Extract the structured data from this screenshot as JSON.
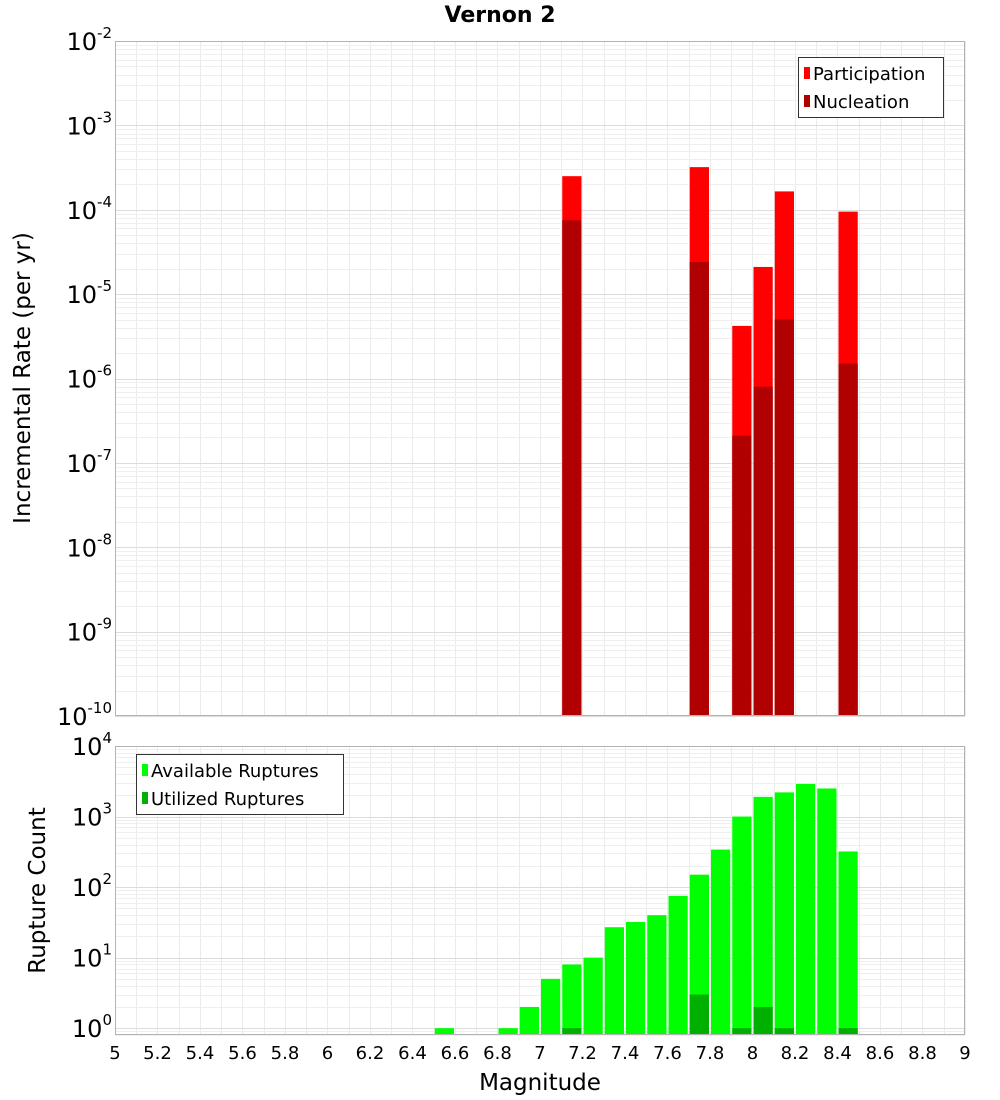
{
  "chart_data": [
    {
      "type": "bar",
      "title": "Vernon 2",
      "xlabel": "Magnitude",
      "ylabel": "Incremental Rate (per yr)",
      "yscale": "log",
      "ylim": [
        1e-10,
        0.01
      ],
      "xlim": [
        5,
        9
      ],
      "y_tick_exponents": [
        "-2",
        "-3",
        "-4",
        "-5",
        "-6",
        "-7",
        "-8",
        "-9",
        "-10"
      ],
      "y_tick_base": "10",
      "bin_width": 0.1,
      "legend_position": "top-right",
      "series": [
        {
          "name": "Participation",
          "color": "#ff0000",
          "points": [
            {
              "x": 7.15,
              "y": 0.00025
            },
            {
              "x": 7.75,
              "y": 0.00032
            },
            {
              "x": 7.95,
              "y": 4.2e-06
            },
            {
              "x": 8.05,
              "y": 2.1e-05
            },
            {
              "x": 8.15,
              "y": 0.000165
            },
            {
              "x": 8.45,
              "y": 9.5e-05
            }
          ]
        },
        {
          "name": "Nucleation",
          "color": "#b00000",
          "points": [
            {
              "x": 7.15,
              "y": 7.5e-05
            },
            {
              "x": 7.75,
              "y": 2.4e-05
            },
            {
              "x": 7.95,
              "y": 2.1e-07
            },
            {
              "x": 8.05,
              "y": 8e-07
            },
            {
              "x": 8.15,
              "y": 5e-06
            },
            {
              "x": 8.45,
              "y": 1.5e-06
            }
          ]
        }
      ]
    },
    {
      "type": "bar",
      "title": "",
      "xlabel": "Magnitude",
      "ylabel": "Rupture Count",
      "yscale": "log",
      "ylim": [
        0.8,
        10000.0
      ],
      "xlim": [
        5,
        9
      ],
      "x_ticks": [
        "5",
        "5.2",
        "5.4",
        "5.6",
        "5.8",
        "6",
        "6.2",
        "6.4",
        "6.6",
        "6.8",
        "7",
        "7.2",
        "7.4",
        "7.6",
        "7.8",
        "8",
        "8.2",
        "8.4",
        "8.6",
        "8.8",
        "9"
      ],
      "y_tick_exponents": [
        "4",
        "3",
        "2",
        "1",
        "0"
      ],
      "y_tick_base": "10",
      "bin_width": 0.1,
      "legend_position": "top-left",
      "series": [
        {
          "name": "Available Ruptures",
          "color": "#00ff00",
          "points": [
            {
              "x": 6.55,
              "y": 1
            },
            {
              "x": 6.85,
              "y": 1
            },
            {
              "x": 6.95,
              "y": 2
            },
            {
              "x": 7.05,
              "y": 5
            },
            {
              "x": 7.15,
              "y": 8
            },
            {
              "x": 7.25,
              "y": 10
            },
            {
              "x": 7.35,
              "y": 27
            },
            {
              "x": 7.45,
              "y": 32
            },
            {
              "x": 7.55,
              "y": 40
            },
            {
              "x": 7.65,
              "y": 75
            },
            {
              "x": 7.75,
              "y": 150
            },
            {
              "x": 7.85,
              "y": 340
            },
            {
              "x": 7.95,
              "y": 1000
            },
            {
              "x": 8.05,
              "y": 1900
            },
            {
              "x": 8.15,
              "y": 2200
            },
            {
              "x": 8.25,
              "y": 2900
            },
            {
              "x": 8.35,
              "y": 2500
            },
            {
              "x": 8.45,
              "y": 320
            }
          ]
        },
        {
          "name": "Utilized Ruptures",
          "color": "#00b000",
          "points": [
            {
              "x": 7.15,
              "y": 1
            },
            {
              "x": 7.75,
              "y": 3
            },
            {
              "x": 7.95,
              "y": 1
            },
            {
              "x": 8.05,
              "y": 2
            },
            {
              "x": 8.15,
              "y": 1
            },
            {
              "x": 8.45,
              "y": 1
            }
          ]
        }
      ]
    }
  ]
}
